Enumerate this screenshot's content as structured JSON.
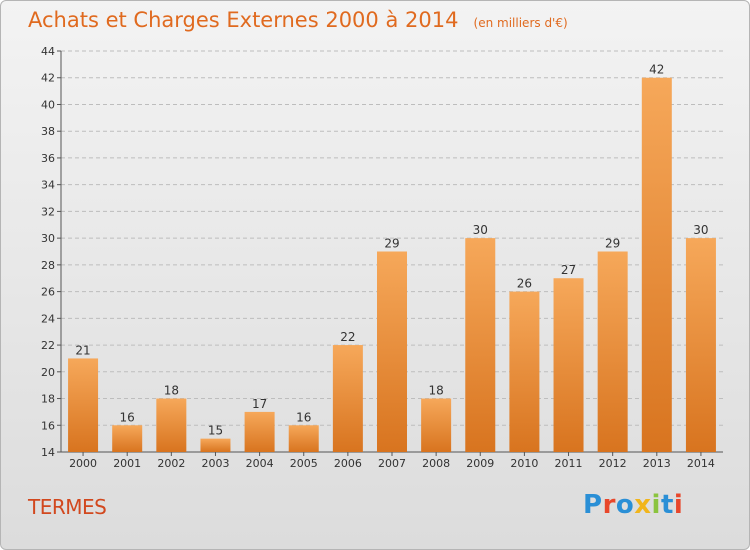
{
  "page": {
    "title": "Achats et Charges Externes 2000 à 2014",
    "unit": "(en milliers d'€)",
    "commune": "TERMES",
    "logo_text": "Proxiti",
    "colors": {
      "title": "#e06a1f",
      "commune": "#d2481e",
      "bar_light": "#f6a85a",
      "bar_dark": "#d8741f",
      "grid": "#bdbdbd",
      "logo": [
        "#2a8fd6",
        "#e8472b",
        "#2a8fd6",
        "#f1b51c",
        "#8bc43f",
        "#2a8fd6",
        "#e8472b"
      ]
    }
  },
  "chart_data": {
    "type": "bar",
    "title": "Achats et Charges Externes 2000 à 2014",
    "categories": [
      "2000",
      "2001",
      "2002",
      "2003",
      "2004",
      "2005",
      "2006",
      "2007",
      "2008",
      "2009",
      "2010",
      "2011",
      "2012",
      "2013",
      "2014"
    ],
    "values": [
      21,
      16,
      18,
      15,
      17,
      16,
      22,
      29,
      18,
      30,
      26,
      27,
      29,
      42,
      30
    ],
    "ylim": [
      14,
      44
    ],
    "yticks": [
      14,
      16,
      18,
      20,
      22,
      24,
      26,
      28,
      30,
      32,
      34,
      36,
      38,
      40,
      42,
      44
    ],
    "grid": true,
    "data_labels": true
  }
}
